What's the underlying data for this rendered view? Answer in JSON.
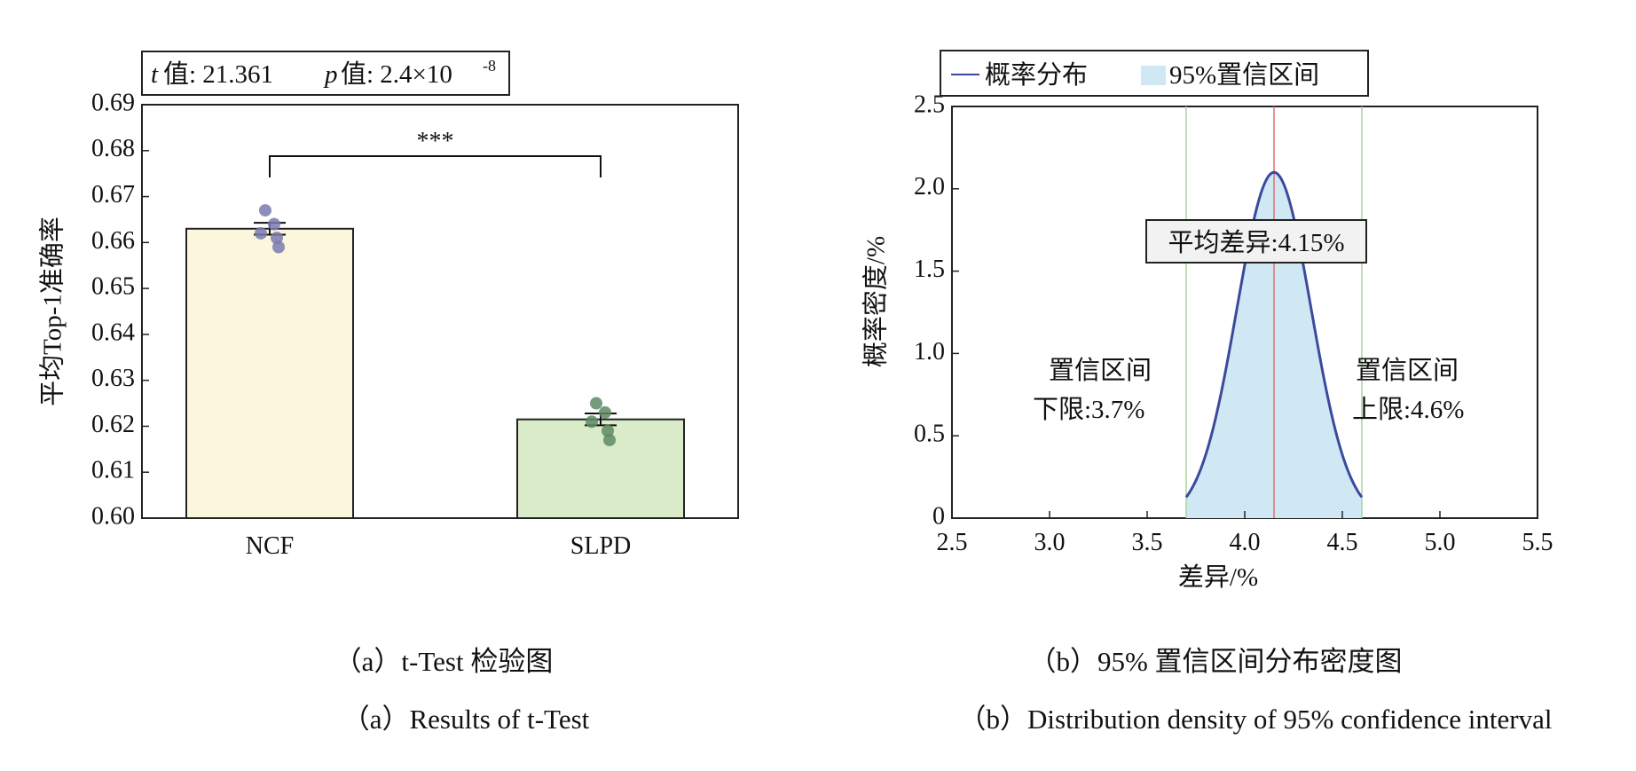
{
  "panel_a": {
    "stats": {
      "t_label": "值: 21.361",
      "t_symbol": "t",
      "p_symbol": "p",
      "p_label": "值: 2.4×10",
      "p_exp": "-8"
    },
    "significance": "***"
  },
  "panel_b": {
    "legend": {
      "line_label": "概率分布",
      "area_label": "95%置信区间"
    },
    "mean_label": "平均差异:4.15%",
    "ci_lower_label": [
      "置信区间",
      "下限:3.7%"
    ],
    "ci_upper_label": [
      "置信区间",
      "上限:4.6%"
    ]
  },
  "captions": {
    "a_cn": "（a）t-Test 检验图",
    "a_en": "（a）Results of t-Test",
    "b_cn": "（b）95% 置信区间分布密度图",
    "b_en": "（b）Distribution density of 95%  confidence interval"
  },
  "chart_data": [
    {
      "type": "bar",
      "title": "",
      "categories": [
        "NCF",
        "SLPD"
      ],
      "values": [
        0.663,
        0.6215
      ],
      "errors": [
        0.0013,
        0.0013
      ],
      "points": [
        [
          0.667,
          0.664,
          0.662,
          0.661,
          0.659
        ],
        [
          0.625,
          0.623,
          0.621,
          0.619,
          0.617
        ]
      ],
      "bar_colors": [
        "#fbf6dc",
        "#d9ebc8"
      ],
      "point_colors": [
        "#7a7ab0",
        "#5d8a64"
      ],
      "xlabel": "",
      "ylabel": "平均Top-1准确率",
      "ylim": [
        0.6,
        0.69
      ],
      "yticks": [
        "0.60",
        "0.61",
        "0.62",
        "0.63",
        "0.64",
        "0.65",
        "0.66",
        "0.67",
        "0.68",
        "0.69"
      ],
      "annotation": "***"
    },
    {
      "type": "area",
      "title": "",
      "series": [
        {
          "name": "概率分布",
          "mean": 4.15,
          "sd": 0.19
        }
      ],
      "ci": [
        3.7,
        4.6
      ],
      "mean": 4.15,
      "xlabel": "差异/%",
      "ylabel": "概率密度/%",
      "xlim": [
        2.5,
        5.5
      ],
      "ylim": [
        0,
        2.5
      ],
      "xticks": [
        "2.5",
        "3.0",
        "3.5",
        "4.0",
        "4.5",
        "5.0",
        "5.5"
      ],
      "yticks": [
        "0",
        "0.5",
        "1.0",
        "1.5",
        "2.0",
        "2.5"
      ],
      "line_color": "#3b4a9c",
      "fill_color": "#cfe8f3",
      "mean_line_color": "#e07070",
      "ci_line_color": "#a8d4a0"
    }
  ]
}
